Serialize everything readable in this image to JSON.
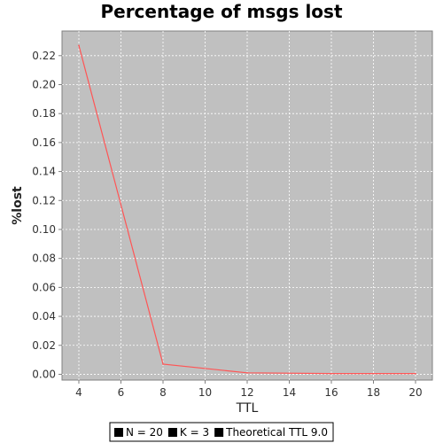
{
  "chart_data": {
    "type": "line",
    "title": "Percentage of msgs lost",
    "xlabel": "TTL",
    "ylabel": "%lost",
    "xlim": [
      3.2,
      20.8
    ],
    "ylim": [
      -0.004,
      0.237
    ],
    "x_ticks": [
      4,
      6,
      8,
      10,
      12,
      14,
      16,
      18,
      20
    ],
    "x_tick_labels": [
      "4",
      "6",
      "8",
      "10",
      "12",
      "14",
      "16",
      "18",
      "20"
    ],
    "y_ticks": [
      0.0,
      0.02,
      0.04,
      0.06,
      0.08,
      0.1,
      0.12,
      0.14,
      0.16,
      0.18,
      0.2,
      0.22
    ],
    "y_tick_labels": [
      "0.00",
      "0.02",
      "0.04",
      "0.06",
      "0.08",
      "0.10",
      "0.12",
      "0.14",
      "0.16",
      "0.18",
      "0.20",
      "0.22"
    ],
    "grid": true,
    "legend_position": "bottom-center",
    "background_color": "#c0c0c0",
    "series": [
      {
        "name": "N = 20",
        "color": "#ff5555",
        "x": [
          4,
          8,
          12,
          16,
          20
        ],
        "y": [
          0.227,
          0.007,
          0.001,
          0.0005,
          0.0005
        ]
      }
    ],
    "legend_items": [
      {
        "label": "N = 20",
        "color": "#000000"
      },
      {
        "label": "K = 3",
        "color": "#000000"
      },
      {
        "label": "Theoretical TTL 9.0",
        "color": "#000000"
      }
    ]
  }
}
